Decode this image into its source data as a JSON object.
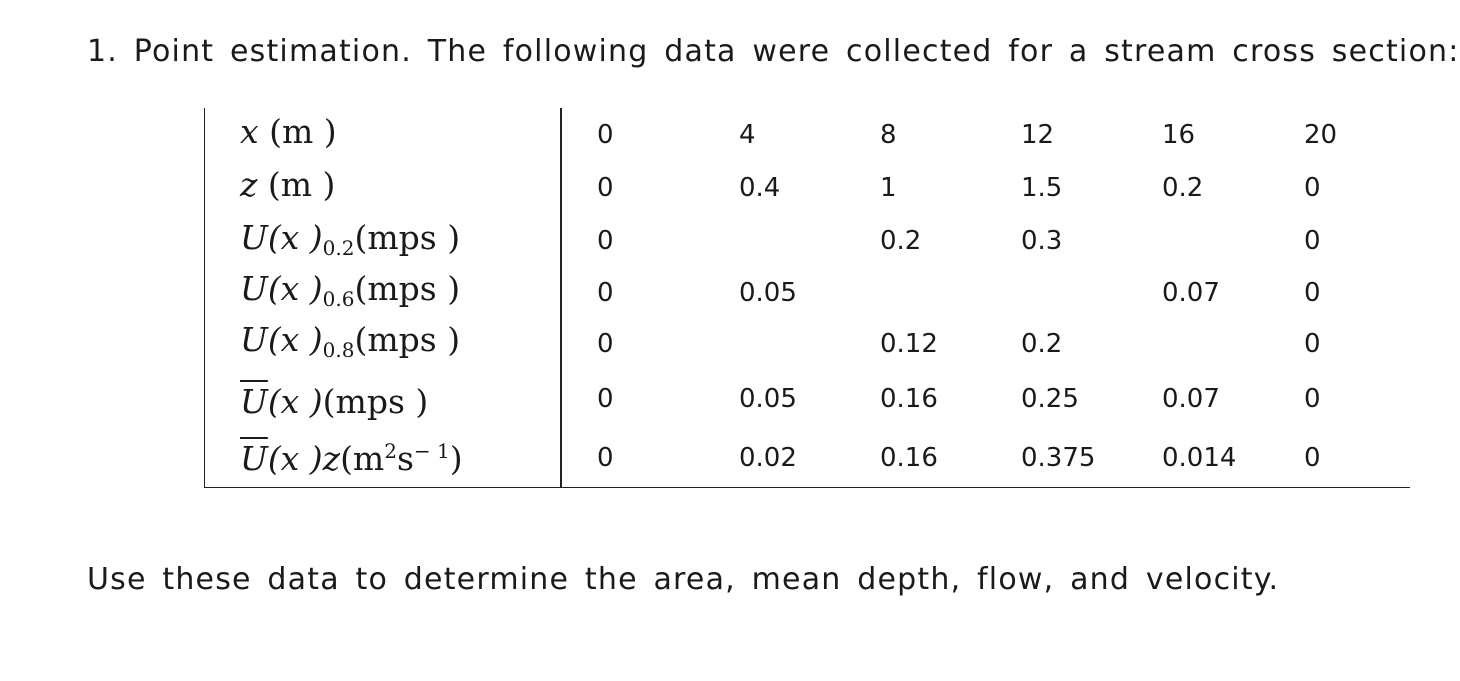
{
  "heading": "1. Point estimation. The following data were collected for a stream cross section:",
  "table": {
    "row_labels": [
      {
        "var": "x",
        "unit": "(m )"
      },
      {
        "var": "z",
        "unit": "(m )"
      },
      {
        "var": "U",
        "arg": "(x )",
        "sub": "0.2",
        "unit": "(mps )"
      },
      {
        "var": "U",
        "arg": "(x )",
        "sub": "0.6",
        "unit": "(mps )"
      },
      {
        "var": "U",
        "arg": "(x )",
        "sub": "0.8",
        "unit": "(mps )"
      },
      {
        "var": "U",
        "arg": "(x )",
        "unit": "(mps )"
      },
      {
        "var": "U",
        "arg": "(x )",
        "var2": "z",
        "unit_pre": "(m",
        "sup1": "2",
        "unit_mid": "s",
        "sup2": "− 1",
        "unit_post": ")"
      }
    ],
    "rows": [
      [
        "0",
        "4",
        "8",
        "12",
        "16",
        "20"
      ],
      [
        "0",
        "0.4",
        "1",
        "1.5",
        "0.2",
        "0"
      ],
      [
        "0",
        "",
        "0.2",
        "0.3",
        "",
        "0"
      ],
      [
        "0",
        "0.05",
        "",
        "",
        "0.07",
        "0"
      ],
      [
        "0",
        "",
        "0.12",
        "0.2",
        "",
        "0"
      ],
      [
        "0",
        "0.05",
        "0.16",
        "0.25",
        "0.07",
        "0"
      ],
      [
        "0",
        "0.02",
        "0.16",
        "0.375",
        "0.014",
        "0"
      ]
    ]
  },
  "question": "Use these data to determine the area, mean depth, flow, and velocity."
}
